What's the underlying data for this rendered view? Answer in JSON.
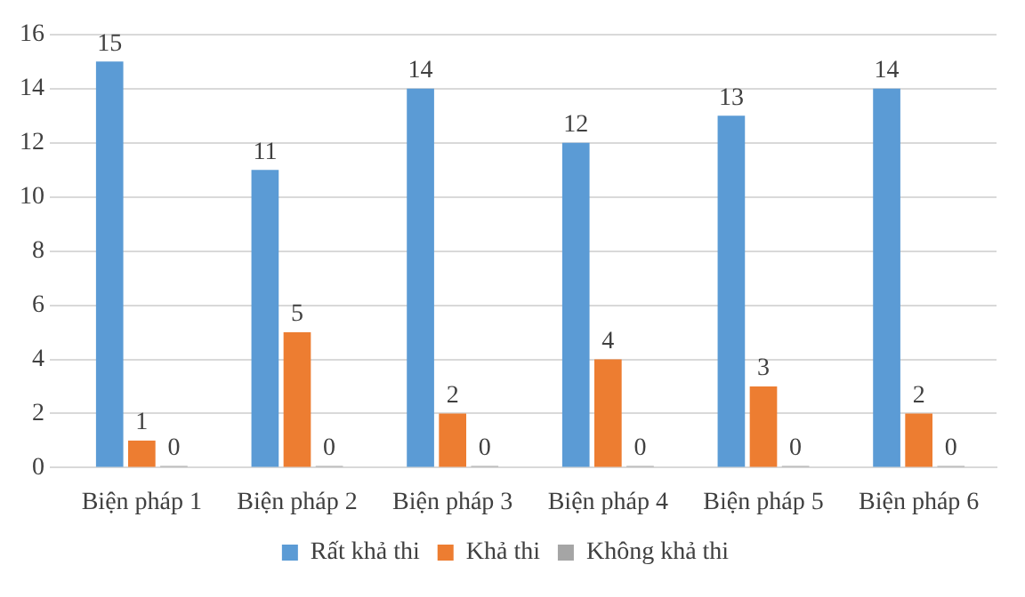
{
  "chart_data": {
    "type": "bar",
    "categories": [
      "Biện pháp 1",
      "Biện pháp 2",
      "Biện pháp 3",
      "Biện pháp 4",
      "Biện pháp 5",
      "Biện pháp 6"
    ],
    "series": [
      {
        "name": "Rất khả thi",
        "color": "#5b9bd5",
        "values": [
          15,
          11,
          14,
          12,
          13,
          14
        ]
      },
      {
        "name": "Khả thi",
        "color": "#ed7d31",
        "values": [
          1,
          5,
          2,
          4,
          3,
          2
        ]
      },
      {
        "name": "Không khả thi",
        "color": "#a5a5a5",
        "values": [
          0,
          0,
          0,
          0,
          0,
          0
        ]
      }
    ],
    "ylim": [
      0,
      16
    ],
    "yticks": [
      0,
      2,
      4,
      6,
      8,
      10,
      12,
      14,
      16
    ],
    "grid": "y",
    "legend": "bottom",
    "data_labels": true
  }
}
